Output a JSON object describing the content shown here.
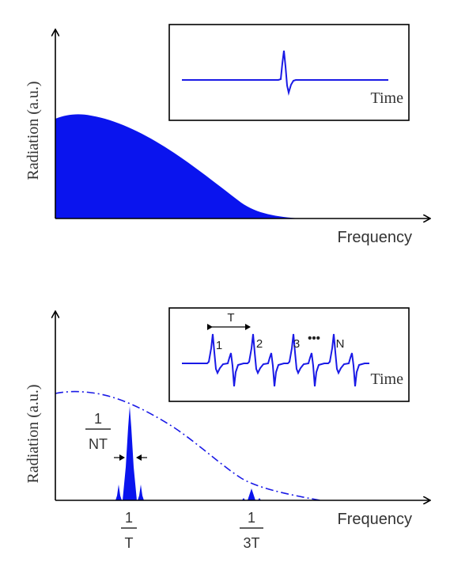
{
  "top_panel": {
    "y_axis_label": "Radiation (a.u.)",
    "x_axis_label": "Frequency",
    "inset": {
      "time_label": "Time"
    }
  },
  "bottom_panel": {
    "y_axis_label": "Radiation (a.u.)",
    "x_axis_label": "Frequency",
    "inset": {
      "period_label": "T",
      "pulse_labels": [
        "1",
        "2",
        "3",
        "N"
      ],
      "ellipsis": "•••",
      "time_label": "Time"
    },
    "linewidth_annotation": {
      "numerator": "1",
      "denominator": "NT"
    },
    "tick_labels": [
      {
        "numerator": "1",
        "denominator": "T"
      },
      {
        "numerator": "1",
        "denominator": "3T"
      }
    ]
  },
  "colors": {
    "spectrum_fill": "#0a14ee",
    "waveform": "#1a1ae6",
    "envelope_dashed": "#1a1ae6",
    "axes": "#000000"
  }
}
